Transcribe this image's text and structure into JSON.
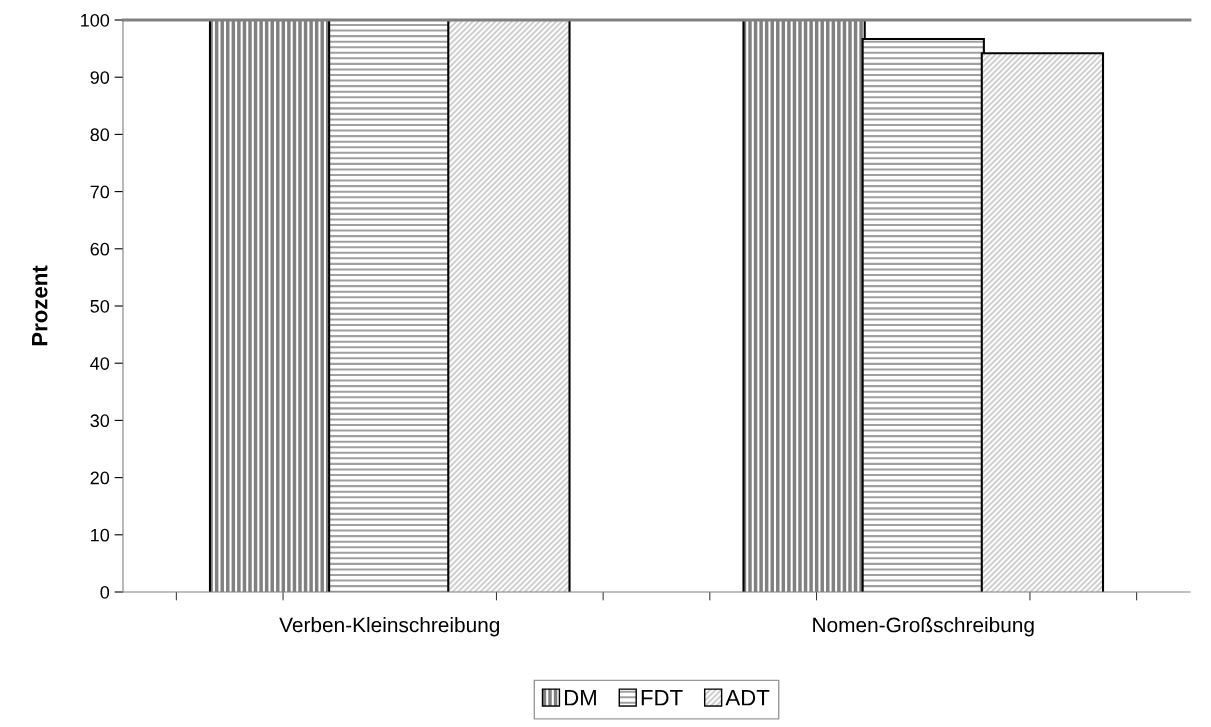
{
  "chart_data": {
    "type": "bar",
    "ylabel": "Prozent",
    "categories": [
      "Verben-Kleinschreibung",
      "Nomen-Großschreibung"
    ],
    "series": [
      {
        "name": "DM",
        "color": "#808080",
        "values": [
          100,
          100
        ]
      },
      {
        "name": "FDT",
        "color": "#ffffff",
        "values": [
          100,
          96.5
        ]
      },
      {
        "name": "ADT",
        "color": "#ffffff",
        "values": [
          100,
          94
        ]
      }
    ],
    "ylim": [
      0,
      100
    ],
    "yticks": [
      0,
      10,
      20,
      30,
      40,
      50,
      60,
      70,
      80,
      90,
      100
    ],
    "grid": false,
    "legend": "bottom"
  }
}
